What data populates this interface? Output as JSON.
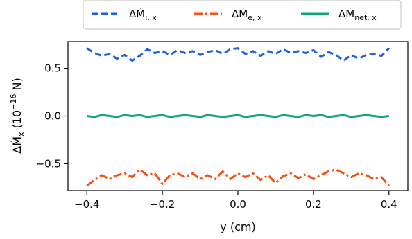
{
  "chart_data": {
    "type": "line",
    "title": "",
    "xlabel": "y (cm)",
    "ylabel": "ΔṀx (10−16 N)",
    "ylabel_main": "ΔṀ",
    "ylabel_sub": "x",
    "ylabel_unit": "(10",
    "ylabel_exp": "−16",
    "ylabel_unit_end": " N)",
    "xlim": [
      -0.45,
      0.45
    ],
    "ylim": [
      -0.78,
      0.78
    ],
    "x_ticks": [
      -0.4,
      -0.2,
      0.0,
      0.2,
      0.4
    ],
    "x_tick_labels": [
      "−0.4",
      "−0.2",
      "0.0",
      "0.2",
      "0.4"
    ],
    "y_ticks": [
      -0.5,
      0.0,
      0.5
    ],
    "y_tick_labels": [
      "−0.5",
      "0.0",
      "0.5"
    ],
    "grid": false,
    "zero_line": true,
    "legend_position": "top-center, outside plot",
    "x": [
      -0.4,
      -0.38,
      -0.36,
      -0.34,
      -0.32,
      -0.3,
      -0.28,
      -0.26,
      -0.24,
      -0.22,
      -0.2,
      -0.18,
      -0.16,
      -0.14,
      -0.12,
      -0.1,
      -0.08,
      -0.06,
      -0.04,
      -0.02,
      0.0,
      0.02,
      0.04,
      0.06,
      0.08,
      0.1,
      0.12,
      0.14,
      0.16,
      0.18,
      0.2,
      0.22,
      0.24,
      0.26,
      0.28,
      0.3,
      0.32,
      0.34,
      0.36,
      0.38,
      0.4
    ],
    "series": [
      {
        "name": "ΔṀi,x",
        "name_main": "ΔṀ",
        "name_sub": "i, x",
        "color": "#1f5fe0",
        "style": "dashed",
        "values": [
          0.71,
          0.66,
          0.63,
          0.65,
          0.6,
          0.64,
          0.58,
          0.63,
          0.7,
          0.66,
          0.68,
          0.64,
          0.69,
          0.66,
          0.68,
          0.64,
          0.67,
          0.69,
          0.65,
          0.7,
          0.71,
          0.65,
          0.68,
          0.63,
          0.68,
          0.65,
          0.7,
          0.66,
          0.68,
          0.66,
          0.69,
          0.62,
          0.67,
          0.64,
          0.58,
          0.64,
          0.6,
          0.64,
          0.65,
          0.63,
          0.71
        ]
      },
      {
        "name": "ΔṀe,x",
        "name_main": "ΔṀ",
        "name_sub": "e, x",
        "color": "#f25113",
        "style": "dashdot",
        "values": [
          -0.73,
          -0.67,
          -0.62,
          -0.66,
          -0.62,
          -0.6,
          -0.64,
          -0.56,
          -0.62,
          -0.6,
          -0.71,
          -0.62,
          -0.6,
          -0.64,
          -0.6,
          -0.66,
          -0.62,
          -0.66,
          -0.58,
          -0.66,
          -0.6,
          -0.64,
          -0.6,
          -0.67,
          -0.62,
          -0.7,
          -0.63,
          -0.6,
          -0.65,
          -0.61,
          -0.66,
          -0.62,
          -0.58,
          -0.56,
          -0.6,
          -0.64,
          -0.6,
          -0.62,
          -0.66,
          -0.64,
          -0.73
        ]
      },
      {
        "name": "ΔṀnet,x",
        "name_main": "ΔṀ",
        "name_sub": "net, x",
        "color": "#10a57a",
        "style": "solid",
        "values": [
          0.0,
          -0.01,
          0.01,
          0.0,
          -0.01,
          0.01,
          0.0,
          0.01,
          -0.01,
          0.0,
          0.01,
          -0.01,
          0.0,
          0.01,
          0.0,
          -0.01,
          0.01,
          0.0,
          -0.01,
          0.0,
          0.01,
          -0.01,
          0.0,
          0.01,
          0.0,
          -0.01,
          0.01,
          0.0,
          -0.01,
          0.01,
          0.0,
          0.01,
          -0.01,
          0.0,
          0.01,
          -0.01,
          0.0,
          0.01,
          0.0,
          -0.01,
          0.0
        ]
      }
    ]
  }
}
